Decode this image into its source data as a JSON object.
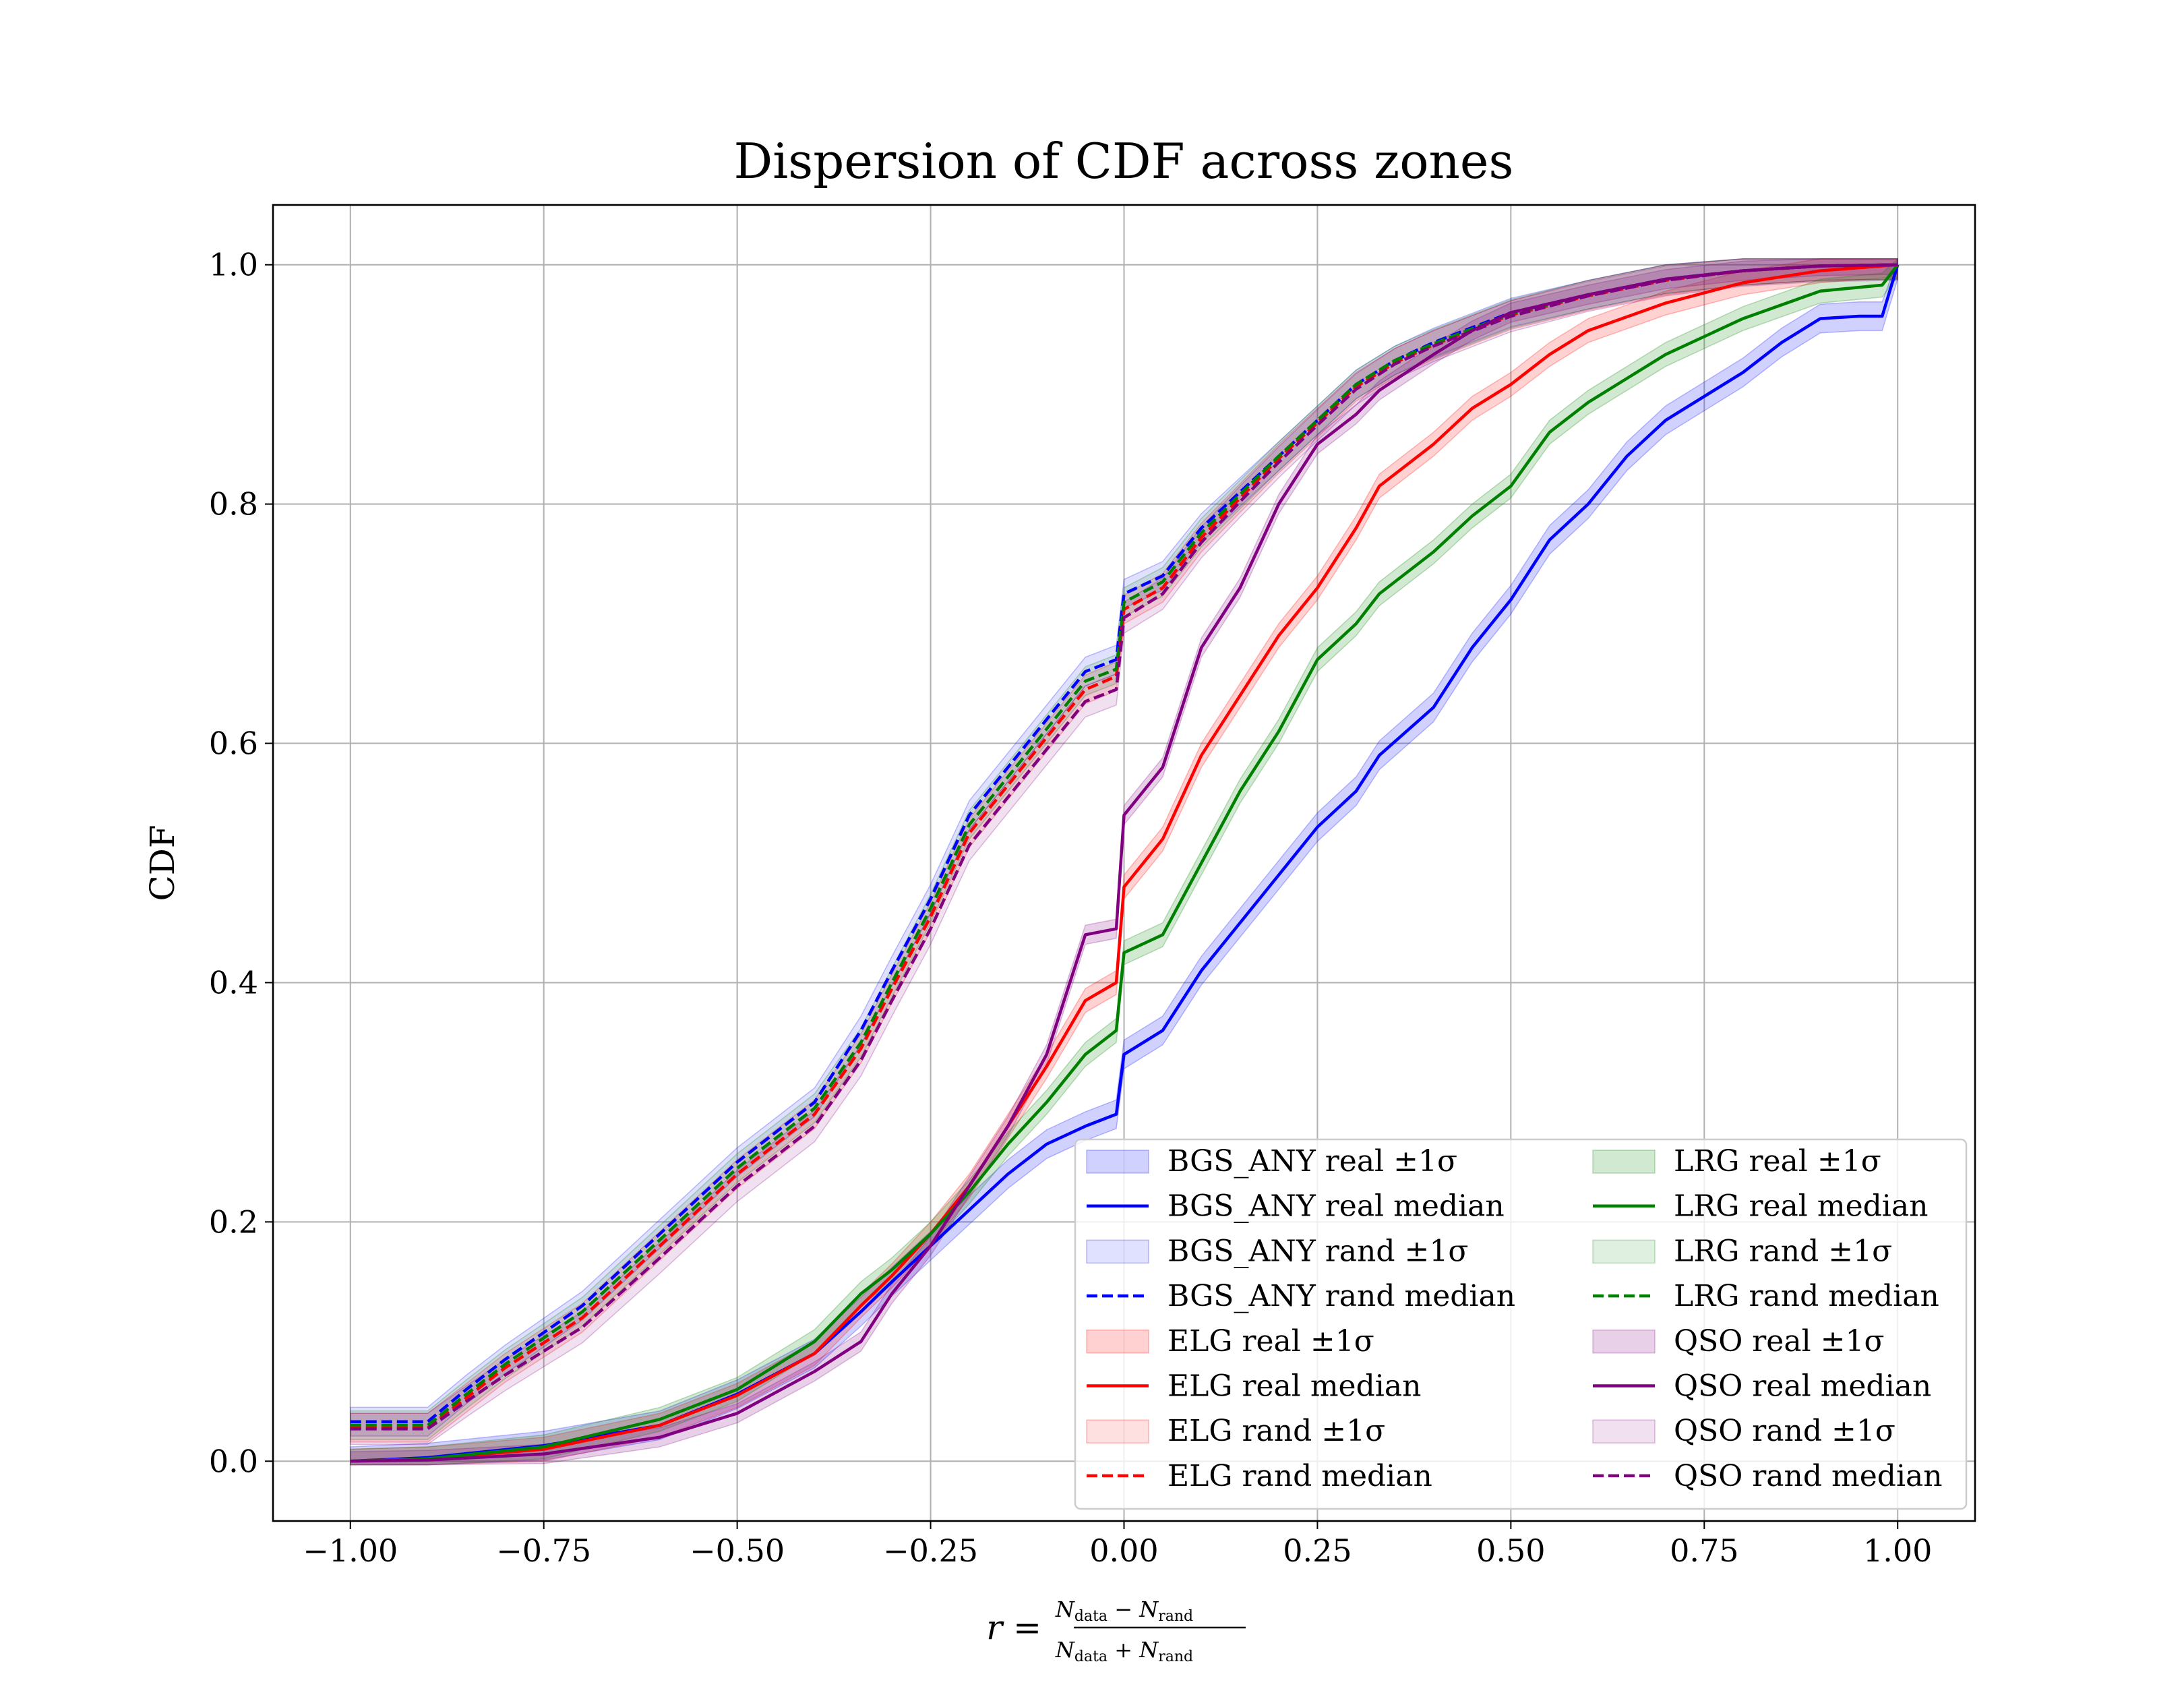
{
  "chart_data": {
    "type": "line",
    "title": "Dispersion of CDF across zones",
    "ylabel": "CDF",
    "xlabel": {
      "lhs": "r =",
      "numerator": "N_data − N_rand",
      "denominator": "N_data + N_rand",
      "num_a": "N",
      "num_a_sub": "data",
      "num_op": "−",
      "num_b": "N",
      "num_b_sub": "rand",
      "den_a": "N",
      "den_a_sub": "data",
      "den_op": "+",
      "den_b": "N",
      "den_b_sub": "rand"
    },
    "xlim": [
      -1.1,
      1.1
    ],
    "ylim": [
      -0.05,
      1.05
    ],
    "xticks": [
      -1.0,
      -0.75,
      -0.5,
      -0.25,
      0.0,
      0.25,
      0.5,
      0.75,
      1.0
    ],
    "xtick_labels": [
      "−1.00",
      "−0.75",
      "−0.50",
      "−0.25",
      "0.00",
      "0.25",
      "0.50",
      "0.75",
      "1.00"
    ],
    "yticks": [
      0.0,
      0.2,
      0.4,
      0.6,
      0.8,
      1.0
    ],
    "ytick_labels": [
      "0.0",
      "0.2",
      "0.4",
      "0.6",
      "0.8",
      "1.0"
    ],
    "grid": true,
    "legend_position": "lower-right",
    "series": [
      {
        "name": "BGS_ANY real median",
        "band_name": "BGS_ANY real ±1σ",
        "color": "#0000ff",
        "dash": "solid",
        "band_width": 0.012,
        "x": [
          -1.0,
          -0.9,
          -0.75,
          -0.6,
          -0.5,
          -0.4,
          -0.34,
          -0.3,
          -0.25,
          -0.2,
          -0.15,
          -0.1,
          -0.05,
          -0.01,
          0.0,
          0.05,
          0.1,
          0.15,
          0.2,
          0.25,
          0.3,
          0.33,
          0.4,
          0.45,
          0.5,
          0.55,
          0.6,
          0.65,
          0.7,
          0.75,
          0.8,
          0.85,
          0.9,
          0.95,
          0.98,
          1.0
        ],
        "y": [
          0.0,
          0.003,
          0.013,
          0.03,
          0.056,
          0.09,
          0.125,
          0.15,
          0.18,
          0.21,
          0.24,
          0.265,
          0.28,
          0.29,
          0.34,
          0.36,
          0.41,
          0.45,
          0.49,
          0.53,
          0.56,
          0.59,
          0.63,
          0.68,
          0.72,
          0.77,
          0.8,
          0.84,
          0.87,
          0.89,
          0.91,
          0.935,
          0.955,
          0.957,
          0.957,
          1.0
        ]
      },
      {
        "name": "BGS_ANY rand median",
        "band_name": "BGS_ANY rand ±1σ",
        "color": "#0000ff",
        "dash": "dashed",
        "band_width": 0.012,
        "x": [
          -1.0,
          -0.9,
          -0.85,
          -0.8,
          -0.7,
          -0.6,
          -0.5,
          -0.4,
          -0.34,
          -0.3,
          -0.25,
          -0.2,
          -0.1,
          -0.05,
          -0.01,
          0.0,
          0.05,
          0.1,
          0.15,
          0.2,
          0.25,
          0.3,
          0.35,
          0.4,
          0.5,
          0.6,
          0.7,
          0.8,
          0.9,
          1.0
        ],
        "y": [
          0.033,
          0.033,
          0.06,
          0.085,
          0.13,
          0.19,
          0.25,
          0.3,
          0.36,
          0.41,
          0.47,
          0.54,
          0.62,
          0.66,
          0.67,
          0.725,
          0.74,
          0.78,
          0.81,
          0.84,
          0.87,
          0.9,
          0.92,
          0.935,
          0.96,
          0.975,
          0.988,
          0.995,
          0.999,
          1.0
        ]
      },
      {
        "name": "ELG real median",
        "band_name": "ELG real ±1σ",
        "color": "#ff0000",
        "dash": "solid",
        "band_width": 0.01,
        "x": [
          -1.0,
          -0.9,
          -0.75,
          -0.6,
          -0.5,
          -0.4,
          -0.34,
          -0.3,
          -0.25,
          -0.2,
          -0.15,
          -0.1,
          -0.05,
          -0.01,
          0.0,
          0.05,
          0.1,
          0.15,
          0.2,
          0.25,
          0.3,
          0.33,
          0.4,
          0.45,
          0.5,
          0.55,
          0.6,
          0.7,
          0.8,
          0.9,
          1.0
        ],
        "y": [
          0.0,
          0.002,
          0.01,
          0.03,
          0.055,
          0.09,
          0.13,
          0.155,
          0.19,
          0.23,
          0.28,
          0.33,
          0.385,
          0.4,
          0.48,
          0.52,
          0.59,
          0.64,
          0.69,
          0.73,
          0.78,
          0.815,
          0.85,
          0.88,
          0.9,
          0.925,
          0.945,
          0.968,
          0.985,
          0.995,
          1.0
        ]
      },
      {
        "name": "ELG rand median",
        "band_name": "ELG rand ±1σ",
        "color": "#ff0000",
        "dash": "dashed",
        "band_width": 0.012,
        "x": [
          -1.0,
          -0.9,
          -0.85,
          -0.8,
          -0.7,
          -0.6,
          -0.5,
          -0.4,
          -0.34,
          -0.3,
          -0.25,
          -0.2,
          -0.1,
          -0.05,
          -0.01,
          0.0,
          0.05,
          0.1,
          0.15,
          0.2,
          0.25,
          0.3,
          0.35,
          0.4,
          0.5,
          0.6,
          0.7,
          0.8,
          0.9,
          1.0
        ],
        "y": [
          0.028,
          0.028,
          0.053,
          0.078,
          0.12,
          0.18,
          0.24,
          0.29,
          0.345,
          0.395,
          0.455,
          0.525,
          0.605,
          0.645,
          0.656,
          0.712,
          0.73,
          0.772,
          0.805,
          0.838,
          0.868,
          0.898,
          0.918,
          0.933,
          0.958,
          0.974,
          0.987,
          0.995,
          0.999,
          1.0
        ]
      },
      {
        "name": "LRG real median",
        "band_name": "LRG real ±1σ",
        "color": "#008000",
        "dash": "solid",
        "band_width": 0.01,
        "x": [
          -1.0,
          -0.9,
          -0.75,
          -0.6,
          -0.5,
          -0.4,
          -0.34,
          -0.3,
          -0.25,
          -0.2,
          -0.15,
          -0.1,
          -0.05,
          -0.01,
          0.0,
          0.05,
          0.1,
          0.15,
          0.2,
          0.25,
          0.3,
          0.33,
          0.4,
          0.45,
          0.5,
          0.55,
          0.6,
          0.7,
          0.8,
          0.9,
          0.98,
          1.0
        ],
        "y": [
          0.0,
          0.002,
          0.012,
          0.035,
          0.06,
          0.1,
          0.14,
          0.16,
          0.19,
          0.225,
          0.265,
          0.3,
          0.34,
          0.36,
          0.425,
          0.44,
          0.5,
          0.56,
          0.61,
          0.67,
          0.7,
          0.725,
          0.76,
          0.79,
          0.815,
          0.86,
          0.885,
          0.925,
          0.955,
          0.978,
          0.983,
          1.0
        ]
      },
      {
        "name": "LRG rand median",
        "band_name": "LRG rand ±1σ",
        "color": "#008000",
        "dash": "dashed",
        "band_width": 0.012,
        "x": [
          -1.0,
          -0.9,
          -0.85,
          -0.8,
          -0.7,
          -0.6,
          -0.5,
          -0.4,
          -0.34,
          -0.3,
          -0.25,
          -0.2,
          -0.1,
          -0.05,
          -0.01,
          0.0,
          0.05,
          0.1,
          0.15,
          0.2,
          0.25,
          0.3,
          0.35,
          0.4,
          0.5,
          0.6,
          0.7,
          0.8,
          0.9,
          1.0
        ],
        "y": [
          0.03,
          0.03,
          0.056,
          0.081,
          0.125,
          0.185,
          0.245,
          0.295,
          0.35,
          0.4,
          0.462,
          0.532,
          0.612,
          0.652,
          0.662,
          0.718,
          0.735,
          0.776,
          0.808,
          0.84,
          0.87,
          0.9,
          0.92,
          0.934,
          0.959,
          0.975,
          0.988,
          0.995,
          0.999,
          1.0
        ]
      },
      {
        "name": "QSO real median",
        "band_name": "QSO real ±1σ",
        "color": "#800080",
        "dash": "solid",
        "band_width": 0.008,
        "x": [
          -1.0,
          -0.9,
          -0.75,
          -0.6,
          -0.5,
          -0.4,
          -0.34,
          -0.3,
          -0.25,
          -0.2,
          -0.15,
          -0.1,
          -0.07,
          -0.05,
          -0.01,
          0.0,
          0.05,
          0.1,
          0.15,
          0.2,
          0.25,
          0.3,
          0.33,
          0.4,
          0.45,
          0.5,
          0.6,
          0.7,
          0.8,
          0.9,
          1.0
        ],
        "y": [
          0.0,
          0.001,
          0.006,
          0.02,
          0.04,
          0.075,
          0.1,
          0.14,
          0.18,
          0.23,
          0.28,
          0.34,
          0.4,
          0.44,
          0.445,
          0.54,
          0.58,
          0.68,
          0.73,
          0.8,
          0.85,
          0.875,
          0.895,
          0.925,
          0.945,
          0.96,
          0.975,
          0.988,
          0.995,
          0.999,
          1.0
        ]
      },
      {
        "name": "QSO rand median",
        "band_name": "QSO rand ±1σ",
        "color": "#800080",
        "dash": "dashed",
        "band_width": 0.013,
        "x": [
          -1.0,
          -0.9,
          -0.85,
          -0.8,
          -0.7,
          -0.6,
          -0.5,
          -0.4,
          -0.34,
          -0.3,
          -0.25,
          -0.2,
          -0.1,
          -0.05,
          -0.01,
          0.0,
          0.05,
          0.1,
          0.15,
          0.2,
          0.25,
          0.3,
          0.35,
          0.4,
          0.5,
          0.6,
          0.7,
          0.8,
          0.9,
          1.0
        ],
        "y": [
          0.027,
          0.027,
          0.05,
          0.072,
          0.112,
          0.17,
          0.23,
          0.28,
          0.335,
          0.385,
          0.445,
          0.515,
          0.595,
          0.635,
          0.645,
          0.705,
          0.725,
          0.768,
          0.802,
          0.835,
          0.866,
          0.896,
          0.917,
          0.932,
          0.957,
          0.974,
          0.987,
          0.995,
          0.999,
          1.0
        ]
      }
    ],
    "legend_entries": [
      "BGS_ANY real ±1σ",
      "BGS_ANY real median",
      "BGS_ANY rand ±1σ",
      "BGS_ANY rand median",
      "ELG real ±1σ",
      "ELG real median",
      "ELG rand ±1σ",
      "ELG rand median",
      "LRG real ±1σ",
      "LRG real median",
      "LRG rand ±1σ",
      "LRG rand median",
      "QSO real ±1σ",
      "QSO real median",
      "QSO rand ±1σ",
      "QSO rand median"
    ]
  }
}
